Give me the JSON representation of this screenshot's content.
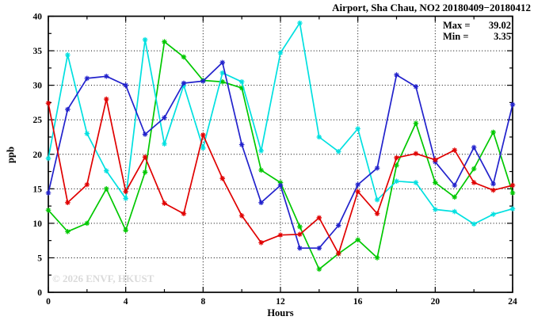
{
  "header": {
    "title": "Airport, Sha Chau, NO2 20180409−20180412"
  },
  "stats": {
    "max_label": "Max =",
    "max_value": "39.02",
    "min_label": "Min =",
    "min_value": "3.35"
  },
  "watermark": "© 2026 ENVF, HKUST",
  "axes": {
    "x_label": "Hours",
    "y_label": "ppb",
    "x_ticks": [
      0,
      4,
      8,
      12,
      16,
      20,
      24
    ],
    "y_ticks": [
      0,
      5,
      10,
      15,
      20,
      25,
      30,
      35,
      40
    ],
    "x_minor_step": 2,
    "y_minor_step": 2.5
  },
  "colors": {
    "red": "#e00000",
    "green": "#00c800",
    "blue": "#2222cc",
    "cyan": "#00e0e0",
    "grid": "#000000",
    "axis": "#000000",
    "watermark": "#dadada"
  },
  "chart_data": {
    "type": "line",
    "title": "Airport, Sha Chau, NO2 20180409−20180412",
    "xlabel": "Hours",
    "ylabel": "ppb",
    "xlim": [
      0,
      24
    ],
    "ylim": [
      0,
      40
    ],
    "grid": true,
    "legend_position": "none",
    "marker": "star",
    "x": [
      0,
      1,
      2,
      3,
      4,
      5,
      6,
      7,
      8,
      9,
      10,
      11,
      12,
      13,
      14,
      15,
      16,
      17,
      18,
      19,
      20,
      21,
      22,
      23,
      24
    ],
    "series": [
      {
        "name": "green",
        "color": "#00c800",
        "values": [
          11.9,
          8.8,
          10.0,
          15.0,
          9.0,
          17.4,
          36.3,
          34.1,
          30.7,
          30.5,
          29.6,
          17.7,
          15.9,
          9.5,
          3.35,
          5.6,
          7.6,
          5.0,
          18.4,
          24.5,
          15.9,
          13.8,
          17.9,
          23.2,
          14.4
        ]
      },
      {
        "name": "cyan",
        "color": "#00e0e0",
        "values": [
          19.4,
          34.4,
          23.0,
          17.6,
          13.6,
          36.6,
          21.5,
          30.0,
          20.9,
          31.8,
          30.5,
          20.5,
          34.7,
          39.02,
          22.5,
          20.4,
          23.7,
          13.4,
          16.1,
          15.9,
          12.0,
          11.7,
          9.9,
          11.3,
          12.1
        ]
      },
      {
        "name": "blue",
        "color": "#2222cc",
        "values": [
          14.4,
          26.5,
          31.0,
          31.3,
          30.0,
          22.9,
          25.3,
          30.3,
          30.6,
          33.3,
          21.4,
          13.0,
          15.5,
          6.4,
          6.4,
          9.7,
          15.6,
          18.0,
          31.5,
          29.8,
          18.9,
          15.5,
          21.0,
          15.7,
          27.2
        ]
      },
      {
        "name": "red",
        "color": "#e00000",
        "values": [
          27.4,
          13.0,
          15.6,
          28.0,
          14.6,
          19.6,
          12.9,
          11.4,
          22.8,
          16.5,
          11.1,
          7.2,
          8.3,
          8.4,
          10.8,
          5.6,
          14.6,
          11.4,
          19.5,
          20.1,
          19.2,
          20.6,
          15.9,
          14.8,
          15.5
        ]
      }
    ],
    "annotations": [
      "Max = 39.02",
      "Min = 3.35"
    ]
  }
}
